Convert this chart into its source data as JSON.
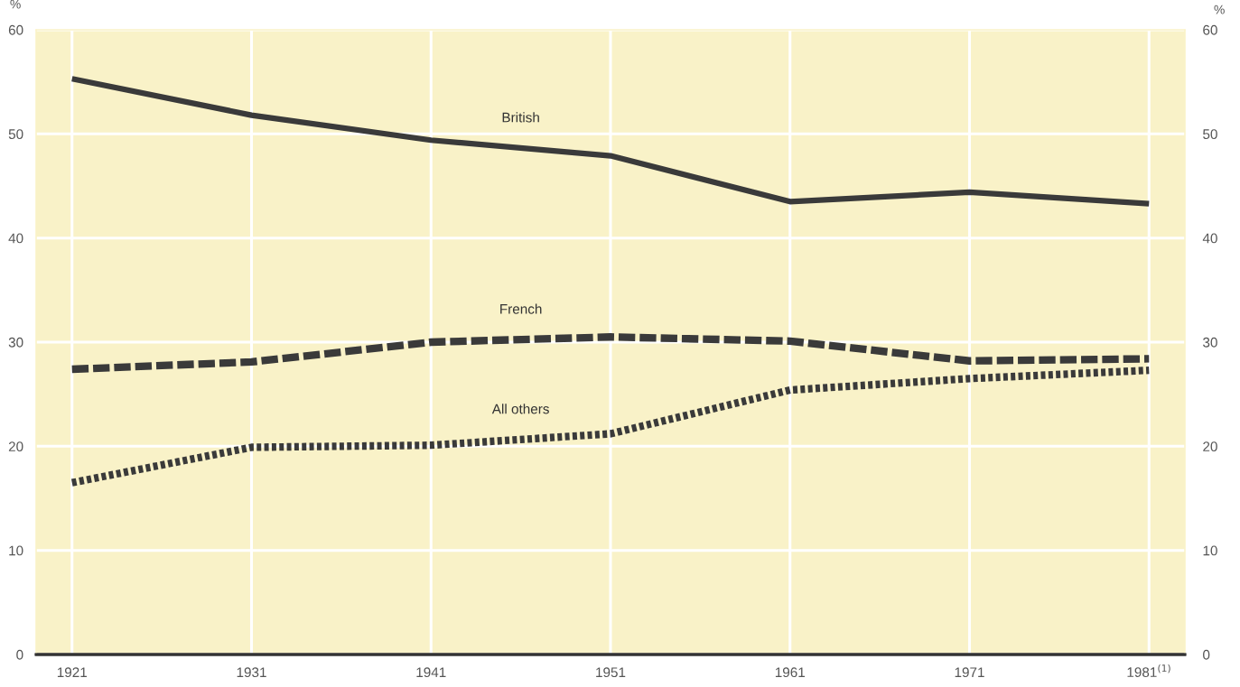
{
  "chart_data": {
    "type": "line",
    "ylabel": "%",
    "y2label": "%",
    "x": [
      1921,
      1931,
      1941,
      1951,
      1961,
      1971,
      1981
    ],
    "xlim": [
      1919,
      1983
    ],
    "xticks": [
      1921,
      1931,
      1941,
      1951,
      1961,
      1971,
      {
        "value": 1981,
        "label": "1981$^{(1)}$"
      }
    ],
    "ylim": [
      0,
      60
    ],
    "yticks": [
      0,
      10,
      20,
      30,
      40,
      50,
      60
    ],
    "y2lim": [
      0,
      60
    ],
    "y2ticks": [
      0,
      10,
      20,
      30,
      40,
      50,
      60
    ],
    "grid": true,
    "legend": false,
    "marker": "none",
    "series": [
      {
        "name": "British",
        "color": "#3a3a3a",
        "line_style": "solid",
        "values": [
          55.3,
          51.8,
          49.4,
          47.9,
          43.5,
          44.4,
          43.3
        ]
      },
      {
        "name": "French",
        "color": "#3a3a3a",
        "line_style": "dashed",
        "values": [
          27.4,
          28.1,
          30.0,
          30.5,
          30.1,
          28.2,
          28.4
        ]
      },
      {
        "name": "All others",
        "color": "#3a3a3a",
        "line_style": "dotted",
        "values": [
          16.5,
          19.9,
          20.1,
          21.2,
          25.4,
          26.5,
          27.3
        ]
      }
    ]
  }
}
